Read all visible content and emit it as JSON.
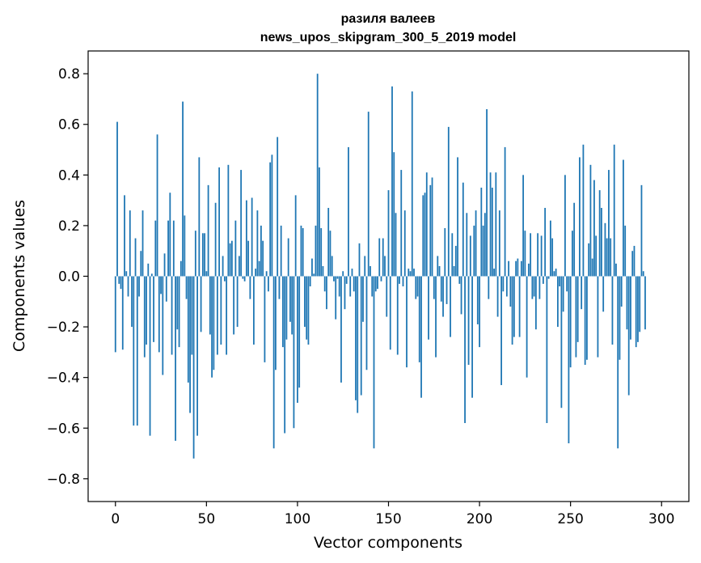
{
  "chart_data": {
    "type": "bar",
    "title": "разиля валеев",
    "subtitle": "news_upos_skipgram_300_5_2019 model",
    "xlabel": "Vector components",
    "ylabel": "Components values",
    "xlim": [
      -15,
      315
    ],
    "ylim": [
      -0.89,
      0.89
    ],
    "xticks": [
      0,
      50,
      100,
      150,
      200,
      250,
      300
    ],
    "yticks": [
      -0.8,
      -0.6,
      -0.4,
      -0.2,
      0.0,
      0.2,
      0.4,
      0.6,
      0.8
    ],
    "ytick_labels": [
      "−0.8",
      "−0.6",
      "−0.4",
      "−0.2",
      "0.0",
      "0.2",
      "0.4",
      "0.6",
      "0.8"
    ],
    "bar_color": "#1f77b4",
    "values": [
      -0.3,
      0.61,
      -0.03,
      -0.05,
      -0.29,
      0.32,
      0.02,
      -0.08,
      0.26,
      -0.2,
      -0.59,
      0.15,
      -0.59,
      -0.08,
      0.1,
      0.26,
      -0.32,
      -0.27,
      0.05,
      -0.63,
      0.01,
      -0.26,
      0.22,
      0.56,
      -0.3,
      -0.07,
      -0.39,
      0.09,
      -0.1,
      0.22,
      0.33,
      -0.31,
      0.22,
      -0.65,
      -0.21,
      -0.28,
      0.06,
      0.69,
      0.24,
      -0.09,
      -0.42,
      -0.54,
      -0.31,
      -0.72,
      0.18,
      -0.63,
      0.47,
      -0.22,
      0.17,
      0.17,
      0.02,
      0.36,
      -0.23,
      -0.4,
      -0.37,
      0.29,
      -0.31,
      0.43,
      -0.27,
      0.08,
      -0.02,
      -0.31,
      0.44,
      0.13,
      0.14,
      -0.23,
      0.22,
      -0.2,
      0.08,
      0.42,
      -0.01,
      -0.02,
      0.3,
      0.14,
      -0.09,
      0.31,
      -0.27,
      0.03,
      0.26,
      0.06,
      0.2,
      0.14,
      -0.34,
      0.02,
      -0.06,
      0.45,
      0.48,
      -0.68,
      -0.37,
      0.55,
      -0.09,
      0.2,
      -0.28,
      -0.62,
      -0.25,
      0.15,
      -0.18,
      -0.23,
      -0.6,
      0.32,
      -0.5,
      -0.44,
      0.2,
      0.19,
      -0.2,
      -0.25,
      -0.27,
      -0.04,
      0.07,
      0.01,
      0.2,
      0.8,
      0.43,
      0.19,
      0.04,
      -0.06,
      -0.13,
      0.27,
      0.18,
      0.08,
      -0.02,
      -0.17,
      -0.01,
      -0.08,
      -0.42,
      0.02,
      -0.13,
      -0.03,
      0.51,
      -0.08,
      0.03,
      -0.06,
      -0.49,
      -0.54,
      0.13,
      -0.47,
      -0.18,
      0.08,
      -0.37,
      0.65,
      0.04,
      -0.08,
      -0.68,
      -0.06,
      -0.05,
      0.15,
      -0.02,
      0.15,
      0.08,
      -0.16,
      0.34,
      -0.29,
      0.75,
      0.49,
      0.25,
      -0.31,
      -0.03,
      0.42,
      -0.04,
      0.26,
      -0.36,
      0.03,
      0.02,
      0.73,
      0.03,
      -0.09,
      -0.08,
      -0.34,
      -0.48,
      0.32,
      0.33,
      0.41,
      -0.25,
      0.36,
      0.39,
      -0.09,
      -0.32,
      0.08,
      0.04,
      -0.1,
      -0.16,
      0.19,
      -0.11,
      0.59,
      -0.24,
      0.17,
      0.04,
      0.12,
      0.47,
      -0.03,
      -0.15,
      0.37,
      -0.58,
      0.25,
      -0.35,
      0.16,
      -0.48,
      0.2,
      0.26,
      -0.19,
      -0.28,
      0.35,
      0.2,
      0.25,
      0.66,
      -0.09,
      0.41,
      0.35,
      0.03,
      0.41,
      -0.16,
      0.26,
      -0.43,
      -0.06,
      0.51,
      -0.08,
      0.06,
      -0.12,
      -0.27,
      -0.24,
      0.06,
      0.07,
      -0.24,
      0.06,
      0.4,
      0.18,
      -0.4,
      0.05,
      0.17,
      -0.09,
      -0.08,
      -0.21,
      0.17,
      -0.09,
      0.16,
      -0.03,
      0.27,
      -0.58,
      -0.01,
      0.22,
      0.15,
      0.02,
      0.03,
      -0.2,
      -0.04,
      -0.52,
      -0.14,
      0.4,
      -0.06,
      -0.66,
      -0.36,
      0.18,
      0.29,
      -0.32,
      -0.26,
      0.47,
      -0.13,
      0.52,
      -0.35,
      -0.33,
      0.13,
      0.44,
      0.07,
      0.38,
      0.16,
      -0.32,
      0.34,
      0.27,
      -0.14,
      0.21,
      0.15,
      0.42,
      0.15,
      -0.27,
      0.52,
      0.05,
      -0.68,
      -0.33,
      -0.12,
      0.46,
      0.2,
      -0.21,
      -0.47,
      -0.25,
      0.1,
      0.12,
      -0.28,
      -0.26,
      -0.22,
      0.36,
      0.02,
      -0.21
    ]
  }
}
